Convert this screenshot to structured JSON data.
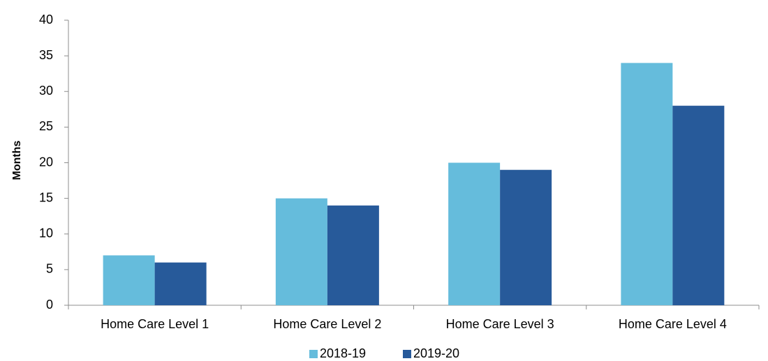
{
  "chart_data": {
    "type": "bar",
    "categories": [
      "Home Care Level 1",
      "Home Care Level 2",
      "Home Care Level 3",
      "Home Care Level 4"
    ],
    "series": [
      {
        "name": "2018-19",
        "values": [
          7,
          15,
          20,
          34
        ],
        "color": "#65bcdc"
      },
      {
        "name": "2019-20",
        "values": [
          6,
          14,
          19,
          28
        ],
        "color": "#275a9a"
      }
    ],
    "ylabel": "Months",
    "ylim": [
      0,
      40
    ],
    "yticks": [
      0,
      5,
      10,
      15,
      20,
      25,
      30,
      35,
      40
    ],
    "grid": false,
    "legend": "bottom-center"
  }
}
